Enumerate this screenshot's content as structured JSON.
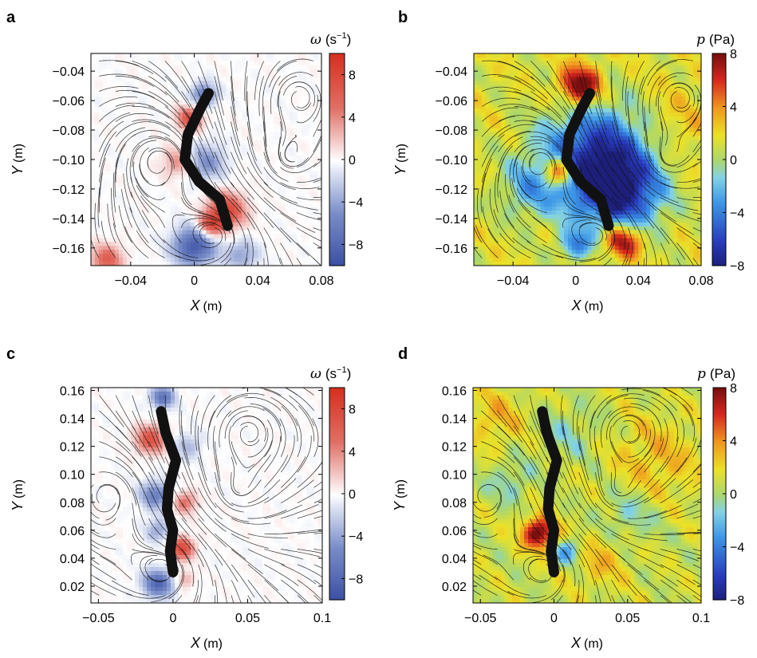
{
  "figure": {
    "panels": [
      "a",
      "b",
      "c",
      "d"
    ]
  },
  "colors": {
    "vorticity_positive": "#d7301f",
    "vorticity_negative": "#3a4fa3",
    "pressure_high": "#7a0f0f",
    "pressure_low": "#1d1f7a",
    "body_fill": "#111111",
    "streamline": "#111111"
  },
  "chart_data": [
    {
      "id": "a",
      "type": "heatmap",
      "field": "vorticity",
      "overlay": "streamlines",
      "letter": "a",
      "xlabel_var": "X",
      "xlabel_unit": "(m)",
      "ylabel_var": "Y",
      "ylabel_unit": "(m)",
      "xlim": [
        -0.065,
        0.08
      ],
      "ylim": [
        -0.172,
        -0.028
      ],
      "xticks": [
        -0.04,
        0,
        0.04,
        0.08
      ],
      "xtick_labels": [
        "−0.04",
        "0",
        "0.04",
        "0.08"
      ],
      "yticks": [
        -0.04,
        -0.06,
        -0.08,
        -0.1,
        -0.12,
        -0.14,
        -0.16
      ],
      "ytick_labels": [
        "−0.04",
        "−0.06",
        "−0.08",
        "−0.10",
        "−0.12",
        "−0.14",
        "−0.16"
      ],
      "colorbar": {
        "sym": "ω",
        "unit": "(s",
        "unit_exp": "−1",
        "unit_close": ")",
        "range": [
          -10,
          10
        ],
        "ticks": [
          8,
          4,
          0,
          -4,
          -8
        ],
        "tick_labels": [
          "8",
          "4",
          "0",
          "−4",
          "−8"
        ],
        "colormap": "diverging-blue-white-red"
      },
      "body_centerline": [
        [
          0.009,
          -0.055
        ],
        [
          0.004,
          -0.065
        ],
        [
          -0.004,
          -0.083
        ],
        [
          -0.006,
          -0.1
        ],
        [
          0.003,
          -0.115
        ],
        [
          0.016,
          -0.127
        ],
        [
          0.021,
          -0.145
        ]
      ],
      "hotspots": [
        {
          "x": 0.006,
          "y": -0.056,
          "v": -6,
          "r": 0.008
        },
        {
          "x": -0.003,
          "y": -0.072,
          "v": 7,
          "r": 0.008
        },
        {
          "x": 0.007,
          "y": -0.102,
          "v": -5,
          "r": 0.012
        },
        {
          "x": -0.01,
          "y": -0.102,
          "v": 4,
          "r": 0.01
        },
        {
          "x": 0.02,
          "y": -0.135,
          "v": 8,
          "r": 0.012
        },
        {
          "x": 0.01,
          "y": -0.145,
          "v": 7,
          "r": 0.008
        },
        {
          "x": 0.0,
          "y": -0.159,
          "v": -9,
          "r": 0.013
        },
        {
          "x": -0.055,
          "y": -0.168,
          "v": 6,
          "r": 0.01
        },
        {
          "x": 0.03,
          "y": -0.165,
          "v": -4,
          "r": 0.01
        }
      ],
      "background": 0
    },
    {
      "id": "b",
      "type": "heatmap",
      "field": "pressure",
      "overlay": "streamlines",
      "letter": "b",
      "xlabel_var": "X",
      "xlabel_unit": "(m)",
      "ylabel_var": "Y",
      "ylabel_unit": "(m)",
      "xlim": [
        -0.065,
        0.08
      ],
      "ylim": [
        -0.172,
        -0.028
      ],
      "xticks": [
        -0.04,
        0,
        0.04,
        0.08
      ],
      "xtick_labels": [
        "−0.04",
        "0",
        "0.04",
        "0.08"
      ],
      "yticks": [
        -0.04,
        -0.06,
        -0.08,
        -0.1,
        -0.12,
        -0.14,
        -0.16
      ],
      "ytick_labels": [
        "−0.04",
        "−0.06",
        "−0.08",
        "−0.10",
        "−0.12",
        "−0.14",
        "−0.16"
      ],
      "colorbar": {
        "sym": "p",
        "unit": "(Pa)",
        "unit_exp": "",
        "unit_close": "",
        "range": [
          -8,
          8
        ],
        "ticks": [
          8,
          4,
          0,
          -4,
          -8
        ],
        "tick_labels": [
          "8",
          "4",
          "0",
          "−4",
          "−8"
        ],
        "colormap": "jet"
      },
      "body_centerline": [
        [
          0.009,
          -0.055
        ],
        [
          0.004,
          -0.065
        ],
        [
          -0.004,
          -0.083
        ],
        [
          -0.006,
          -0.1
        ],
        [
          0.003,
          -0.115
        ],
        [
          0.016,
          -0.127
        ],
        [
          0.021,
          -0.145
        ]
      ],
      "hotspots": [
        {
          "x": 0.003,
          "y": -0.05,
          "v": 8,
          "r": 0.013
        },
        {
          "x": 0.015,
          "y": -0.1,
          "v": -9,
          "r": 0.035
        },
        {
          "x": 0.03,
          "y": -0.125,
          "v": -6,
          "r": 0.025
        },
        {
          "x": -0.01,
          "y": -0.108,
          "v": 8,
          "r": 0.01
        },
        {
          "x": 0.03,
          "y": -0.155,
          "v": 7,
          "r": 0.012
        },
        {
          "x": -0.03,
          "y": -0.12,
          "v": -3,
          "r": 0.02
        },
        {
          "x": 0.0,
          "y": -0.158,
          "v": -5,
          "r": 0.01
        },
        {
          "x": 0.06,
          "y": -0.08,
          "v": 1.5,
          "r": 0.03
        }
      ],
      "background": 1.5
    },
    {
      "id": "c",
      "type": "heatmap",
      "field": "vorticity",
      "overlay": "streamlines",
      "letter": "c",
      "xlabel_var": "X",
      "xlabel_unit": "(m)",
      "ylabel_var": "Y",
      "ylabel_unit": "(m)",
      "xlim": [
        -0.055,
        0.1
      ],
      "ylim": [
        0.008,
        0.162
      ],
      "xticks": [
        -0.05,
        0,
        0.05,
        0.1
      ],
      "xtick_labels": [
        "−0.05",
        "0",
        "0.05",
        "0.1"
      ],
      "yticks": [
        0.16,
        0.14,
        0.12,
        0.1,
        0.08,
        0.06,
        0.04,
        0.02
      ],
      "ytick_labels": [
        "0.16",
        "0.14",
        "0.12",
        "0.10",
        "0.08",
        "0.06",
        "0.04",
        "0.02"
      ],
      "colorbar": {
        "sym": "ω",
        "unit": "(s",
        "unit_exp": "−1",
        "unit_close": ")",
        "range": [
          -10,
          10
        ],
        "ticks": [
          8,
          4,
          0,
          -4,
          -8
        ],
        "tick_labels": [
          "8",
          "4",
          "0",
          "−4",
          "−8"
        ],
        "colormap": "diverging-blue-white-red"
      },
      "body_centerline": [
        [
          -0.008,
          0.145
        ],
        [
          -0.005,
          0.13
        ],
        [
          0.002,
          0.11
        ],
        [
          -0.003,
          0.09
        ],
        [
          -0.004,
          0.075
        ],
        [
          0.0,
          0.06
        ],
        [
          -0.002,
          0.045
        ],
        [
          0.0,
          0.03
        ]
      ],
      "hotspots": [
        {
          "x": -0.007,
          "y": 0.155,
          "v": -7,
          "r": 0.008
        },
        {
          "x": -0.015,
          "y": 0.125,
          "v": 7,
          "r": 0.01
        },
        {
          "x": 0.01,
          "y": 0.12,
          "v": -3,
          "r": 0.009
        },
        {
          "x": -0.012,
          "y": 0.085,
          "v": -6,
          "r": 0.01
        },
        {
          "x": 0.008,
          "y": 0.08,
          "v": 5,
          "r": 0.008
        },
        {
          "x": 0.006,
          "y": 0.047,
          "v": 8,
          "r": 0.008
        },
        {
          "x": -0.01,
          "y": 0.06,
          "v": -4,
          "r": 0.008
        },
        {
          "x": -0.01,
          "y": 0.022,
          "v": -8,
          "r": 0.01
        },
        {
          "x": 0.008,
          "y": 0.025,
          "v": 3,
          "r": 0.006
        }
      ],
      "background": 0
    },
    {
      "id": "d",
      "type": "heatmap",
      "field": "pressure",
      "overlay": "streamlines",
      "letter": "d",
      "xlabel_var": "X",
      "xlabel_unit": "(m)",
      "ylabel_var": "Y",
      "ylabel_unit": "(m)",
      "xlim": [
        -0.055,
        0.1
      ],
      "ylim": [
        0.008,
        0.162
      ],
      "xticks": [
        -0.05,
        0,
        0.05,
        0.1
      ],
      "xtick_labels": [
        "−0.05",
        "0",
        "0.05",
        "0.1"
      ],
      "yticks": [
        0.16,
        0.14,
        0.12,
        0.1,
        0.08,
        0.06,
        0.04,
        0.02
      ],
      "ytick_labels": [
        "0.16",
        "0.14",
        "0.12",
        "0.10",
        "0.08",
        "0.06",
        "0.04",
        "0.02"
      ],
      "colorbar": {
        "sym": "p",
        "unit": "(Pa)",
        "unit_exp": "",
        "unit_close": "",
        "range": [
          -8,
          8
        ],
        "ticks": [
          8,
          4,
          0,
          -4,
          -8
        ],
        "tick_labels": [
          "8",
          "4",
          "0",
          "−4",
          "−8"
        ],
        "colormap": "jet"
      },
      "body_centerline": [
        [
          -0.008,
          0.145
        ],
        [
          -0.005,
          0.13
        ],
        [
          0.002,
          0.11
        ],
        [
          -0.003,
          0.09
        ],
        [
          -0.004,
          0.075
        ],
        [
          0.0,
          0.06
        ],
        [
          -0.002,
          0.045
        ],
        [
          0.0,
          0.03
        ]
      ],
      "hotspots": [
        {
          "x": -0.01,
          "y": 0.058,
          "v": 8,
          "r": 0.011
        },
        {
          "x": 0.01,
          "y": 0.045,
          "v": -4,
          "r": 0.01
        },
        {
          "x": -0.03,
          "y": 0.095,
          "v": -2,
          "r": 0.015
        },
        {
          "x": 0.01,
          "y": 0.13,
          "v": -1.5,
          "r": 0.02
        },
        {
          "x": 0.05,
          "y": 0.07,
          "v": -2,
          "r": 0.02
        },
        {
          "x": 0.07,
          "y": 0.11,
          "v": 2,
          "r": 0.03
        },
        {
          "x": -0.04,
          "y": 0.14,
          "v": 2,
          "r": 0.02
        },
        {
          "x": 0.03,
          "y": 0.04,
          "v": 2,
          "r": 0.02
        }
      ],
      "background": 1
    }
  ]
}
